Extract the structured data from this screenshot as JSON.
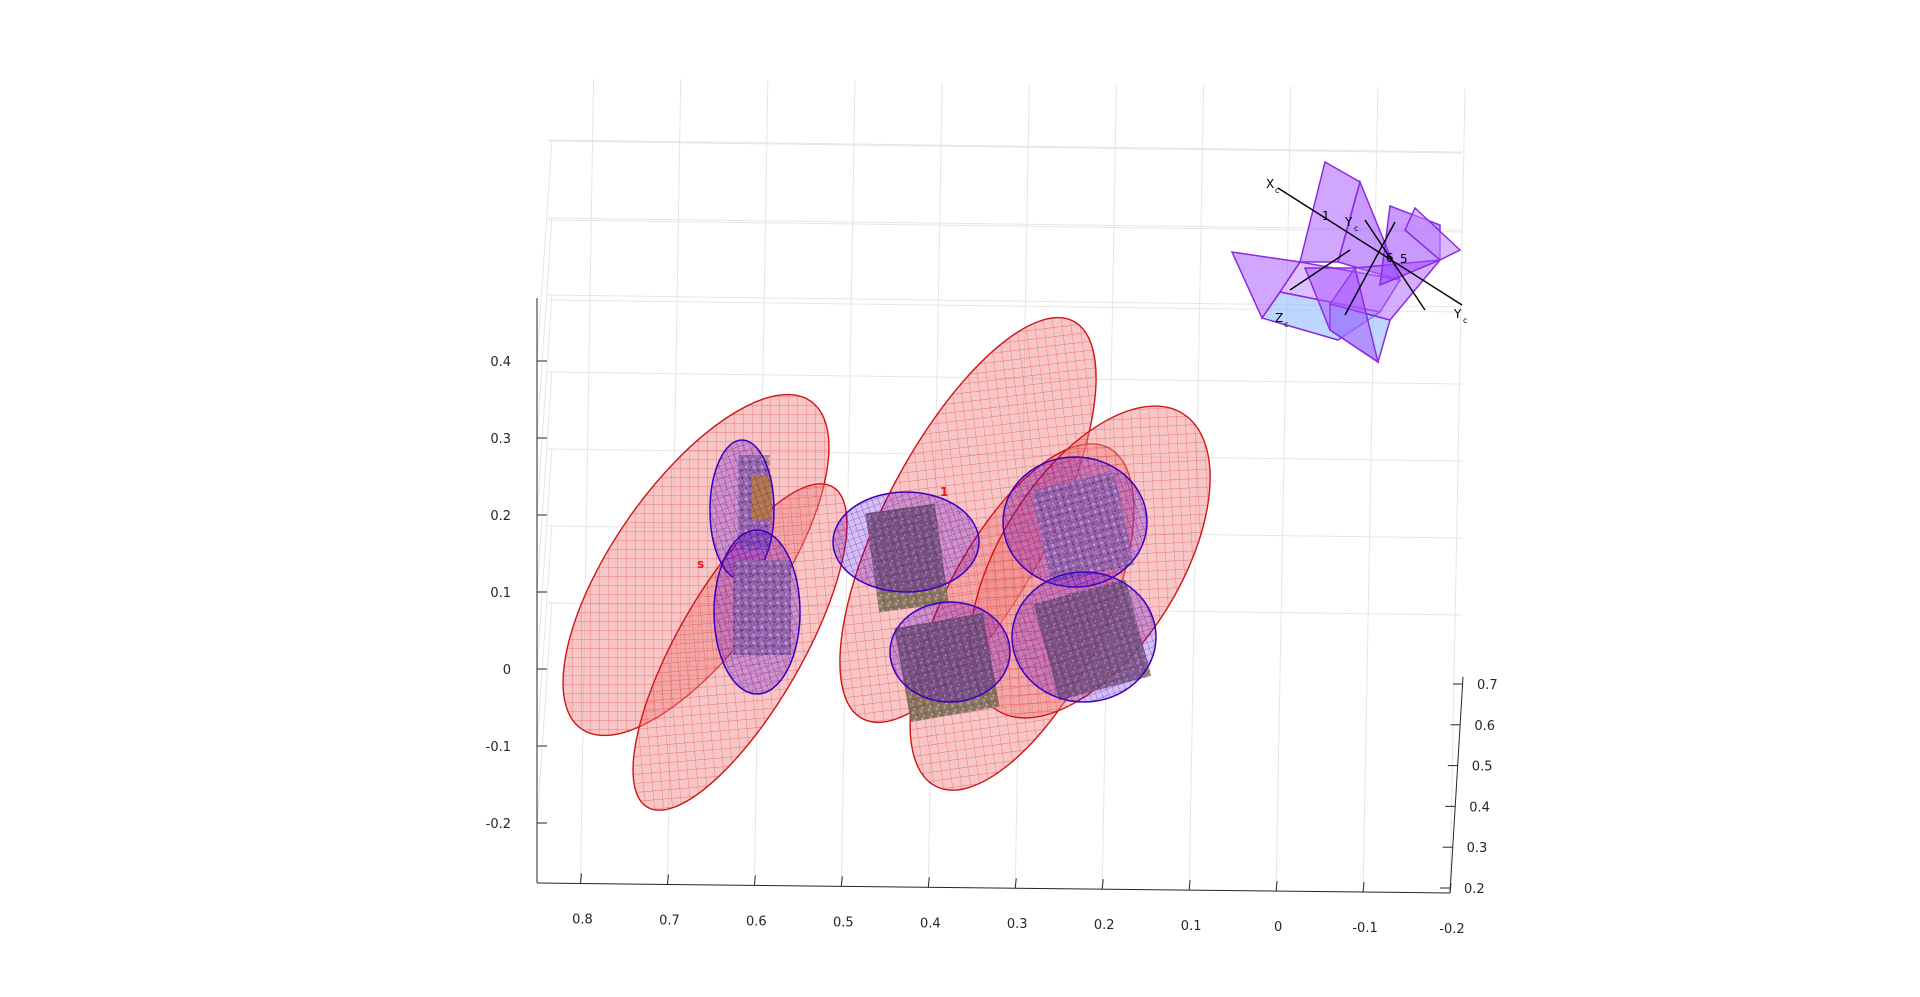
{
  "chart_data": {
    "type": "scatter",
    "title": "",
    "xlabel": "",
    "ylabel": "",
    "zlabel": "",
    "grid": true,
    "x_axis": {
      "ticks": [
        0.8,
        0.7,
        0.6,
        0.5,
        0.4,
        0.3,
        0.2,
        0.1,
        0,
        -0.1,
        -0.2
      ],
      "labels": [
        "0.8",
        "0.7",
        "0.6",
        "0.5",
        "0.4",
        "0.3",
        "0.2",
        "0.1",
        "0",
        "-0.1",
        "-0.2"
      ]
    },
    "y_axis": {
      "ticks": [
        0.2,
        0.3,
        0.4,
        0.5,
        0.6,
        0.7
      ],
      "labels": [
        "0.2",
        "0.3",
        "0.4",
        "0.5",
        "0.6",
        "0.7"
      ]
    },
    "z_axis": {
      "ticks": [
        -0.2,
        -0.1,
        0,
        0.1,
        0.2,
        0.3,
        0.4
      ],
      "labels": [
        "-0.2",
        "-0.1",
        "0",
        "0.1",
        "0.2",
        "0.3",
        "0.4"
      ]
    },
    "uncertainty_ellipsoid_color": "#e31a1c",
    "object_ellipsoid_color": "#5a00d6",
    "camera_color": "#a64dff",
    "objects": [
      {
        "id": "left-tall-upper",
        "x": 0.63,
        "z": 0.24
      },
      {
        "id": "left-tall-lower",
        "x": 0.6,
        "z": 0.09
      },
      {
        "id": "center-upper",
        "x": 0.42,
        "z": 0.19
      },
      {
        "id": "center-lower",
        "x": 0.37,
        "z": 0.02
      },
      {
        "id": "right-upper",
        "x": 0.2,
        "z": 0.2
      },
      {
        "id": "right-lower",
        "x": 0.19,
        "z": 0.05
      }
    ],
    "object_labels": [
      {
        "text": "1",
        "x": 0.38,
        "z": 0.24
      },
      {
        "text": "s",
        "x": 0.67,
        "z": 0.14
      }
    ],
    "camera_labels": [
      {
        "text": "X",
        "sub": "c"
      },
      {
        "text": "Y",
        "sub": "c"
      },
      {
        "text": "Z",
        "sub": "c"
      },
      {
        "text": "1"
      },
      {
        "text": "5"
      },
      {
        "text": "6"
      },
      {
        "text": "Y",
        "sub": "c"
      }
    ]
  }
}
